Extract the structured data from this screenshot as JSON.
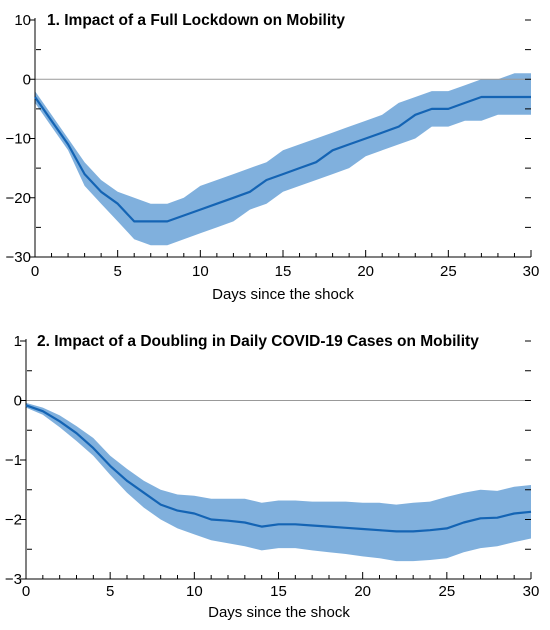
{
  "chart_data": [
    {
      "type": "line",
      "title": "1. Impact of a Full Lockdown on Mobility",
      "xlabel": "Days since the shock",
      "ylabel": "",
      "xlim": [
        0,
        30
      ],
      "ylim": [
        -30,
        10
      ],
      "x_ticks": [
        0,
        5,
        10,
        15,
        20,
        25,
        30
      ],
      "y_ticks": [
        10,
        0,
        -10,
        -20,
        -30
      ],
      "zero_line": true,
      "grid": false,
      "colors": {
        "line": "#1464b4",
        "band": "#80b0dd",
        "zero_line": "#999999"
      },
      "x": [
        0,
        1,
        2,
        3,
        4,
        5,
        6,
        7,
        8,
        9,
        10,
        11,
        12,
        13,
        14,
        15,
        16,
        17,
        18,
        19,
        20,
        21,
        22,
        23,
        24,
        25,
        26,
        27,
        28,
        29,
        30
      ],
      "series": [
        {
          "values": [
            -3,
            -7,
            -11,
            -16,
            -19,
            -21,
            -24,
            -24,
            -24,
            -23,
            -22,
            -21,
            -20,
            -19,
            -17,
            -16,
            -15,
            -14,
            -12,
            -11,
            -10,
            -9,
            -8,
            -6,
            -5,
            -5,
            -4,
            -3,
            -3,
            -3,
            -3
          ]
        }
      ],
      "band": {
        "lower": [
          -4,
          -8,
          -12,
          -18,
          -21,
          -24,
          -27,
          -28,
          -28,
          -27,
          -26,
          -25,
          -24,
          -22,
          -21,
          -19,
          -18,
          -17,
          -16,
          -15,
          -13,
          -12,
          -11,
          -10,
          -8,
          -8,
          -7,
          -7,
          -6,
          -6,
          -6
        ],
        "upper": [
          -2,
          -6,
          -10,
          -14,
          -17,
          -19,
          -20,
          -21,
          -21,
          -20,
          -18,
          -17,
          -16,
          -15,
          -14,
          -12,
          -11,
          -10,
          -9,
          -8,
          -7,
          -6,
          -4,
          -3,
          -2,
          -2,
          -1,
          0,
          0,
          1,
          1
        ]
      }
    },
    {
      "type": "line",
      "title": "2. Impact of a Doubling in Daily COVID-19 Cases on Mobility",
      "xlabel": "Days since the shock",
      "ylabel": "",
      "xlim": [
        0,
        30
      ],
      "ylim": [
        -3,
        1
      ],
      "x_ticks": [
        0,
        5,
        10,
        15,
        20,
        25,
        30
      ],
      "y_ticks": [
        1,
        0,
        -1,
        -2,
        -3
      ],
      "zero_line": true,
      "grid": false,
      "colors": {
        "line": "#1464b4",
        "band": "#80b0dd",
        "zero_line": "#999999"
      },
      "x": [
        0,
        1,
        2,
        3,
        4,
        5,
        6,
        7,
        8,
        9,
        10,
        11,
        12,
        13,
        14,
        15,
        16,
        17,
        18,
        19,
        20,
        21,
        22,
        23,
        24,
        25,
        26,
        27,
        28,
        29,
        30
      ],
      "series": [
        {
          "values": [
            -0.08,
            -0.18,
            -0.35,
            -0.55,
            -0.8,
            -1.1,
            -1.35,
            -1.55,
            -1.75,
            -1.85,
            -1.9,
            -2.0,
            -2.02,
            -2.05,
            -2.12,
            -2.08,
            -2.08,
            -2.1,
            -2.12,
            -2.14,
            -2.16,
            -2.18,
            -2.2,
            -2.2,
            -2.18,
            -2.15,
            -2.05,
            -1.98,
            -1.97,
            -1.9,
            -1.87
          ]
        }
      ],
      "band": {
        "lower": [
          -0.12,
          -0.24,
          -0.45,
          -0.68,
          -0.93,
          -1.25,
          -1.55,
          -1.8,
          -2.0,
          -2.15,
          -2.25,
          -2.35,
          -2.4,
          -2.45,
          -2.52,
          -2.48,
          -2.48,
          -2.52,
          -2.55,
          -2.58,
          -2.62,
          -2.65,
          -2.7,
          -2.7,
          -2.68,
          -2.65,
          -2.55,
          -2.48,
          -2.45,
          -2.38,
          -2.32
        ],
        "upper": [
          -0.04,
          -0.12,
          -0.25,
          -0.43,
          -0.63,
          -0.93,
          -1.15,
          -1.35,
          -1.5,
          -1.58,
          -1.6,
          -1.65,
          -1.65,
          -1.65,
          -1.72,
          -1.68,
          -1.68,
          -1.7,
          -1.7,
          -1.7,
          -1.72,
          -1.72,
          -1.75,
          -1.72,
          -1.7,
          -1.62,
          -1.55,
          -1.5,
          -1.52,
          -1.45,
          -1.42
        ]
      }
    }
  ]
}
